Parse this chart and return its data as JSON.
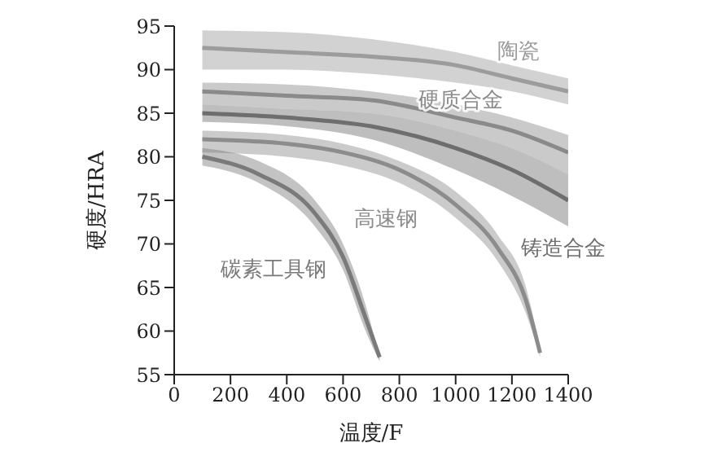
{
  "chart_data": {
    "type": "line",
    "xlabel": "温度/F",
    "ylabel": "硬度/HRA",
    "xlim": [
      0,
      1400
    ],
    "ylim": [
      55,
      95
    ],
    "xticks": [
      0,
      200,
      400,
      600,
      800,
      1000,
      1200,
      1400
    ],
    "yticks": [
      55,
      60,
      65,
      70,
      75,
      80,
      85,
      90,
      95
    ],
    "grid": false,
    "legend": false,
    "marker": "none",
    "series": [
      {
        "name": "陶瓷",
        "color": "#9c9c9c",
        "x": [
          100,
          400,
          700,
          1000,
          1200,
          1400
        ],
        "values": [
          92.5,
          92,
          91.5,
          90.5,
          89,
          87.5
        ],
        "lower": [
          90,
          90,
          89.5,
          88.5,
          87.5,
          86
        ],
        "upper": [
          94.5,
          94.3,
          93.5,
          92,
          90.5,
          89
        ]
      },
      {
        "name": "硬质合金",
        "color": "#8a8a8a",
        "x": [
          100,
          400,
          700,
          1000,
          1200,
          1400
        ],
        "values": [
          87.5,
          87,
          86.5,
          84.5,
          83,
          80.5
        ],
        "lower": [
          86,
          85.5,
          85,
          83,
          81,
          78
        ],
        "upper": [
          88.5,
          88.3,
          87.5,
          86,
          84.5,
          82.5
        ]
      },
      {
        "name": "铸造合金",
        "color": "#6e6e6e",
        "x": [
          100,
          400,
          700,
          1000,
          1200,
          1400
        ],
        "values": [
          85,
          84.5,
          83.5,
          81,
          78.5,
          75
        ],
        "lower": [
          84,
          83.5,
          82,
          78.5,
          75.5,
          72
        ],
        "upper": [
          86,
          85.5,
          85,
          83,
          81,
          78
        ]
      },
      {
        "name": "高速钢",
        "color": "#8c8c8c",
        "x": [
          100,
          400,
          600,
          800,
          1000,
          1150,
          1250,
          1300
        ],
        "values": [
          82,
          81.5,
          80.5,
          78.5,
          74.5,
          69.5,
          63.5,
          57.5
        ],
        "lower": [
          80.5,
          80,
          79,
          77,
          73,
          68,
          62,
          57
        ],
        "upper": [
          83,
          82.5,
          81.5,
          79.5,
          76,
          71,
          65,
          58
        ]
      },
      {
        "name": "碳素工具钢",
        "color": "#7a7a7a",
        "x": [
          100,
          300,
          500,
          600,
          680,
          730
        ],
        "values": [
          80,
          78,
          73.5,
          68.5,
          61.5,
          57
        ],
        "lower": [
          79,
          77,
          72,
          67,
          60,
          56.5
        ],
        "upper": [
          81,
          79.5,
          75,
          70,
          63,
          57
        ]
      }
    ]
  }
}
